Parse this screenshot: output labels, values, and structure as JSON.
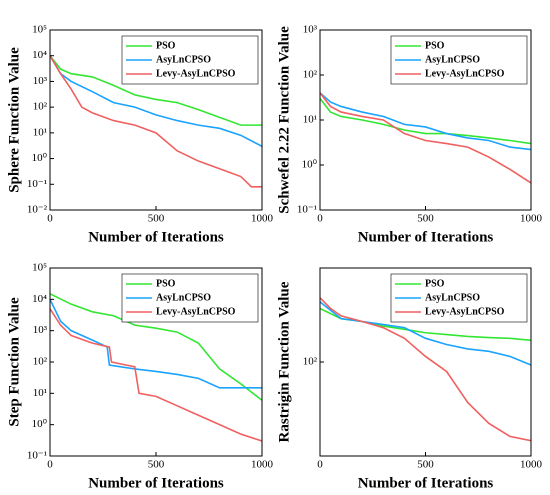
{
  "chart_data": [
    {
      "type": "line",
      "ylabel": "Sphere Function Value",
      "xlabel": "Number of Iterations",
      "ylog": true,
      "legend": "upper right",
      "xlim": [
        0,
        1000
      ],
      "xticks": [
        0,
        500,
        1000
      ],
      "ylim": [
        0.01,
        100000
      ],
      "yticks": [
        {
          "value": 0.01,
          "label": "10⁻²"
        },
        {
          "value": 0.1,
          "label": "10⁻¹"
        },
        {
          "value": 1,
          "label": "10⁰"
        },
        {
          "value": 10,
          "label": "10¹"
        },
        {
          "value": 100,
          "label": "10²"
        },
        {
          "value": 1000,
          "label": "10³"
        },
        {
          "value": 10000,
          "label": "10⁴"
        },
        {
          "value": 100000,
          "label": "10⁵"
        }
      ],
      "series": [
        {
          "name": "PSO",
          "color": "#33e633",
          "x": [
            0,
            50,
            100,
            200,
            300,
            400,
            500,
            600,
            700,
            800,
            900,
            1000
          ],
          "values": [
            10000,
            3000,
            2000,
            1500,
            700,
            300,
            200,
            150,
            80,
            40,
            20,
            20
          ]
        },
        {
          "name": "AsyLnCPSO",
          "color": "#1aa3ff",
          "x": [
            0,
            50,
            100,
            200,
            300,
            400,
            500,
            600,
            700,
            800,
            900,
            1000
          ],
          "values": [
            10000,
            2000,
            1000,
            400,
            150,
            100,
            50,
            30,
            20,
            15,
            8,
            3
          ]
        },
        {
          "name": "Levy-AsyLnCPSO",
          "color": "#f06060",
          "x": [
            0,
            50,
            100,
            150,
            200,
            300,
            400,
            500,
            600,
            700,
            800,
            900,
            950,
            1000
          ],
          "values": [
            10000,
            2000,
            500,
            100,
            60,
            30,
            20,
            10,
            2,
            0.8,
            0.4,
            0.2,
            0.08,
            0.08
          ]
        }
      ]
    },
    {
      "type": "line",
      "ylabel": "Schwefel 2.22 Function Value",
      "xlabel": "Number of Iterations",
      "ylog": true,
      "legend": "upper right",
      "xlim": [
        0,
        1000
      ],
      "xticks": [
        0,
        500,
        1000
      ],
      "ylim": [
        0.1,
        1000
      ],
      "yticks": [
        {
          "value": 0.1,
          "label": "10⁻¹"
        },
        {
          "value": 1,
          "label": "10⁰"
        },
        {
          "value": 10,
          "label": "10¹"
        },
        {
          "value": 100,
          "label": "10²"
        },
        {
          "value": 1000,
          "label": "10³"
        }
      ],
      "series": [
        {
          "name": "PSO",
          "color": "#33e633",
          "x": [
            0,
            50,
            100,
            200,
            300,
            400,
            500,
            600,
            700,
            800,
            900,
            1000
          ],
          "values": [
            30,
            15,
            12,
            10,
            8,
            6,
            5,
            5,
            4.5,
            4,
            3.5,
            3
          ]
        },
        {
          "name": "AsyLnCPSO",
          "color": "#1aa3ff",
          "x": [
            0,
            50,
            100,
            200,
            300,
            400,
            500,
            600,
            700,
            800,
            900,
            1000
          ],
          "values": [
            40,
            25,
            20,
            15,
            12,
            8,
            7,
            5,
            4,
            3.5,
            2.5,
            2.2
          ]
        },
        {
          "name": "Levy-AsyLnCPSO",
          "color": "#f06060",
          "x": [
            0,
            50,
            100,
            200,
            300,
            400,
            500,
            600,
            700,
            800,
            900,
            1000
          ],
          "values": [
            40,
            20,
            15,
            12,
            10,
            5,
            3.5,
            3,
            2.5,
            1.5,
            0.8,
            0.4
          ]
        }
      ]
    },
    {
      "type": "line",
      "ylabel": "Step Function Value",
      "xlabel": "Number of Iterations",
      "ylog": true,
      "legend": "upper right",
      "xlim": [
        0,
        1000
      ],
      "xticks": [
        0,
        500,
        1000
      ],
      "ylim": [
        0.1,
        100000
      ],
      "yticks": [
        {
          "value": 0.1,
          "label": "10⁻¹"
        },
        {
          "value": 1,
          "label": "10⁰"
        },
        {
          "value": 10,
          "label": "10¹"
        },
        {
          "value": 100,
          "label": "10²"
        },
        {
          "value": 1000,
          "label": "10³"
        },
        {
          "value": 10000,
          "label": "10⁴"
        },
        {
          "value": 100000,
          "label": "10⁵"
        }
      ],
      "series": [
        {
          "name": "PSO",
          "color": "#33e633",
          "x": [
            0,
            100,
            200,
            300,
            400,
            500,
            600,
            700,
            800,
            900,
            1000
          ],
          "values": [
            15000,
            7000,
            4000,
            3000,
            1500,
            1200,
            900,
            400,
            60,
            20,
            6
          ]
        },
        {
          "name": "AsyLnCPSO",
          "color": "#1aa3ff",
          "x": [
            0,
            50,
            100,
            200,
            270,
            280,
            400,
            500,
            600,
            700,
            800,
            900,
            1000
          ],
          "values": [
            10000,
            2000,
            1000,
            500,
            300,
            80,
            60,
            50,
            40,
            30,
            15,
            15,
            15
          ]
        },
        {
          "name": "Levy-AsyLnCPSO",
          "color": "#f06060",
          "x": [
            0,
            50,
            100,
            200,
            280,
            290,
            400,
            420,
            500,
            600,
            700,
            800,
            900,
            1000
          ],
          "values": [
            5000,
            1500,
            700,
            400,
            300,
            100,
            70,
            10,
            8,
            4,
            2,
            1,
            0.5,
            0.3
          ]
        }
      ]
    },
    {
      "type": "line",
      "ylabel": "Rastrigin Function Value",
      "xlabel": "Number of Iterations",
      "ylog": true,
      "legend": "upper right",
      "xlim": [
        0,
        1000
      ],
      "xticks": [
        0,
        500,
        1000
      ],
      "ylim": [
        20,
        500
      ],
      "yticks": [
        {
          "value": 100,
          "label": "10²"
        }
      ],
      "series": [
        {
          "name": "PSO",
          "color": "#33e633",
          "x": [
            0,
            100,
            200,
            300,
            400,
            500,
            600,
            700,
            800,
            900,
            1000
          ],
          "values": [
            250,
            210,
            200,
            185,
            175,
            165,
            160,
            155,
            152,
            150,
            145
          ]
        },
        {
          "name": "AsyLnCPSO",
          "color": "#1aa3ff",
          "x": [
            0,
            100,
            200,
            300,
            400,
            500,
            600,
            700,
            800,
            900,
            1000
          ],
          "values": [
            280,
            210,
            200,
            190,
            180,
            150,
            135,
            125,
            120,
            110,
            95
          ]
        },
        {
          "name": "Levy-AsyLnCPSO",
          "color": "#f06060",
          "x": [
            0,
            50,
            100,
            200,
            300,
            400,
            500,
            600,
            700,
            800,
            900,
            1000
          ],
          "values": [
            300,
            250,
            220,
            200,
            180,
            150,
            110,
            85,
            50,
            35,
            28,
            26
          ]
        }
      ]
    }
  ]
}
